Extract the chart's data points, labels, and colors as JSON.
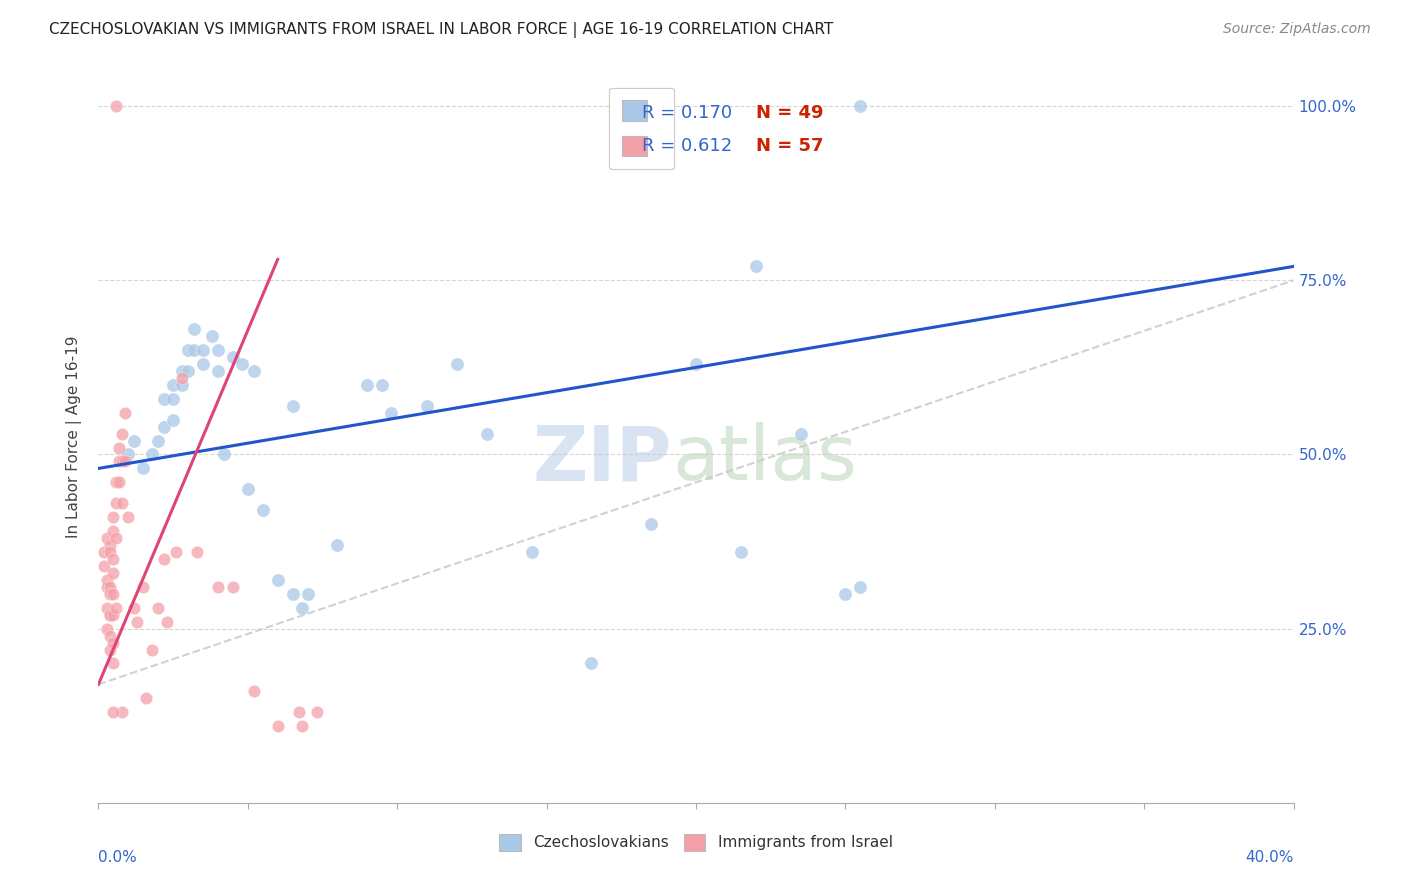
{
  "title": "CZECHOSLOVAKIAN VS IMMIGRANTS FROM ISRAEL IN LABOR FORCE | AGE 16-19 CORRELATION CHART",
  "source": "Source: ZipAtlas.com",
  "ylabel": "In Labor Force | Age 16-19",
  "ytick_values": [
    0.0,
    0.25,
    0.5,
    0.75,
    1.0
  ],
  "ytick_labels": [
    "",
    "25.0%",
    "50.0%",
    "75.0%",
    "100.0%"
  ],
  "xlim": [
    0.0,
    0.4
  ],
  "ylim": [
    0.05,
    1.05
  ],
  "blue_color": "#a8c8e8",
  "pink_color": "#f4a0a8",
  "trendline_blue": "#2255cc",
  "trendline_pink": "#dd4477",
  "trendline_gray": "#cccccc",
  "legend_r_color": "#3366cc",
  "legend_n_color": "#cc0000",
  "blue_scatter": [
    [
      0.01,
      0.5
    ],
    [
      0.012,
      0.52
    ],
    [
      0.015,
      0.48
    ],
    [
      0.018,
      0.5
    ],
    [
      0.02,
      0.52
    ],
    [
      0.022,
      0.54
    ],
    [
      0.022,
      0.58
    ],
    [
      0.025,
      0.55
    ],
    [
      0.025,
      0.58
    ],
    [
      0.025,
      0.6
    ],
    [
      0.028,
      0.6
    ],
    [
      0.028,
      0.62
    ],
    [
      0.03,
      0.65
    ],
    [
      0.03,
      0.62
    ],
    [
      0.032,
      0.68
    ],
    [
      0.032,
      0.65
    ],
    [
      0.035,
      0.65
    ],
    [
      0.035,
      0.63
    ],
    [
      0.038,
      0.67
    ],
    [
      0.04,
      0.65
    ],
    [
      0.04,
      0.62
    ],
    [
      0.042,
      0.5
    ],
    [
      0.045,
      0.64
    ],
    [
      0.048,
      0.63
    ],
    [
      0.05,
      0.45
    ],
    [
      0.052,
      0.62
    ],
    [
      0.055,
      0.42
    ],
    [
      0.06,
      0.32
    ],
    [
      0.065,
      0.57
    ],
    [
      0.065,
      0.3
    ],
    [
      0.068,
      0.28
    ],
    [
      0.07,
      0.3
    ],
    [
      0.08,
      0.37
    ],
    [
      0.09,
      0.6
    ],
    [
      0.095,
      0.6
    ],
    [
      0.098,
      0.56
    ],
    [
      0.11,
      0.57
    ],
    [
      0.12,
      0.63
    ],
    [
      0.13,
      0.53
    ],
    [
      0.145,
      0.36
    ],
    [
      0.165,
      0.2
    ],
    [
      0.185,
      0.4
    ],
    [
      0.2,
      0.63
    ],
    [
      0.215,
      0.36
    ],
    [
      0.22,
      0.77
    ],
    [
      0.235,
      0.53
    ],
    [
      0.25,
      0.3
    ],
    [
      0.255,
      0.31
    ],
    [
      0.255,
      1.0
    ]
  ],
  "pink_scatter": [
    [
      0.002,
      0.36
    ],
    [
      0.002,
      0.34
    ],
    [
      0.003,
      0.32
    ],
    [
      0.003,
      0.38
    ],
    [
      0.003,
      0.31
    ],
    [
      0.003,
      0.28
    ],
    [
      0.003,
      0.25
    ],
    [
      0.004,
      0.37
    ],
    [
      0.004,
      0.31
    ],
    [
      0.004,
      0.27
    ],
    [
      0.004,
      0.22
    ],
    [
      0.004,
      0.36
    ],
    [
      0.004,
      0.3
    ],
    [
      0.004,
      0.27
    ],
    [
      0.004,
      0.24
    ],
    [
      0.005,
      0.41
    ],
    [
      0.005,
      0.35
    ],
    [
      0.005,
      0.3
    ],
    [
      0.005,
      0.27
    ],
    [
      0.005,
      0.23
    ],
    [
      0.005,
      0.2
    ],
    [
      0.005,
      0.39
    ],
    [
      0.005,
      0.33
    ],
    [
      0.006,
      0.28
    ],
    [
      0.006,
      0.46
    ],
    [
      0.006,
      0.43
    ],
    [
      0.006,
      0.38
    ],
    [
      0.007,
      0.51
    ],
    [
      0.007,
      0.46
    ],
    [
      0.007,
      0.49
    ],
    [
      0.008,
      0.53
    ],
    [
      0.008,
      0.49
    ],
    [
      0.008,
      0.43
    ],
    [
      0.009,
      0.56
    ],
    [
      0.009,
      0.49
    ],
    [
      0.01,
      0.41
    ],
    [
      0.012,
      0.28
    ],
    [
      0.013,
      0.26
    ],
    [
      0.015,
      0.31
    ],
    [
      0.016,
      0.15
    ],
    [
      0.018,
      0.22
    ],
    [
      0.02,
      0.28
    ],
    [
      0.022,
      0.35
    ],
    [
      0.023,
      0.26
    ],
    [
      0.026,
      0.36
    ],
    [
      0.028,
      0.61
    ],
    [
      0.033,
      0.36
    ],
    [
      0.04,
      0.31
    ],
    [
      0.045,
      0.31
    ],
    [
      0.052,
      0.16
    ],
    [
      0.06,
      0.11
    ],
    [
      0.067,
      0.13
    ],
    [
      0.073,
      0.13
    ],
    [
      0.068,
      0.11
    ],
    [
      0.008,
      0.13
    ],
    [
      0.005,
      0.13
    ],
    [
      0.006,
      1.0
    ]
  ],
  "blue_trendline_x": [
    0.0,
    0.4
  ],
  "blue_trendline_y": [
    0.48,
    0.77
  ],
  "pink_trendline_x": [
    0.0,
    0.06
  ],
  "pink_trendline_y": [
    0.17,
    0.78
  ],
  "gray_trendline_x": [
    0.0,
    0.4
  ],
  "gray_trendline_y": [
    0.17,
    0.75
  ]
}
